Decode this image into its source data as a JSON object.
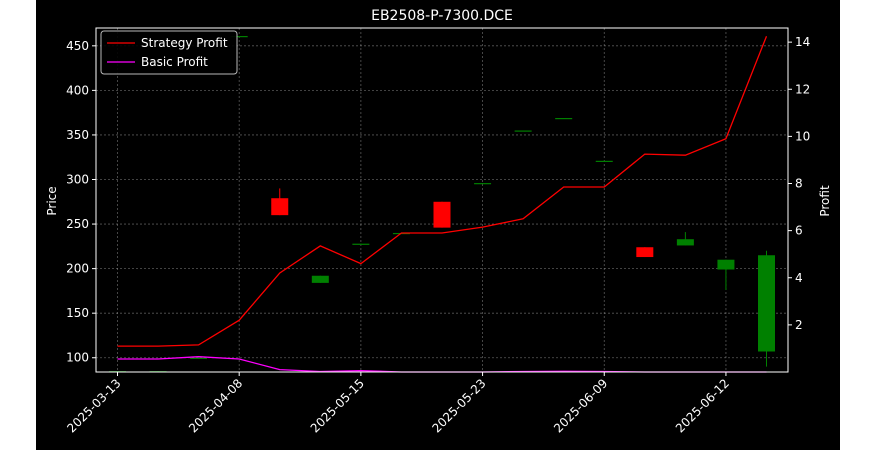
{
  "chart_data": {
    "type": "candlestick+line",
    "title": "EB2508-P-7300.DCE",
    "ylabel_left": "Price",
    "ylabel_right": "Profit",
    "ylim_left": [
      84,
      470
    ],
    "ylim_right": [
      0.0,
      14.6
    ],
    "yticks_left": [
      100,
      150,
      200,
      250,
      300,
      350,
      400,
      450
    ],
    "yticks_right": [
      2,
      4,
      6,
      8,
      10,
      12,
      14
    ],
    "x_tick_labels": [
      "2025-03-13",
      "2025-04-08",
      "2025-05-15",
      "2025-05-23",
      "2025-06-09",
      "2025-06-12"
    ],
    "x_tick_positions": [
      0,
      3,
      6,
      9,
      12,
      15
    ],
    "grid": true,
    "legend_position": "upper-left",
    "series": [
      {
        "name": "Strategy Profit",
        "color": "#ff0000",
        "axis": "right",
        "values": [
          1.1,
          1.1,
          1.15,
          2.2,
          4.2,
          5.35,
          4.6,
          5.9,
          5.9,
          6.15,
          6.5,
          7.85,
          7.85,
          9.25,
          9.2,
          9.9,
          14.25
        ]
      },
      {
        "name": "Basic Profit",
        "color": "#ff00ff",
        "axis": "right",
        "values": [
          0.55,
          0.55,
          0.65,
          0.55,
          0.1,
          0.02,
          0.06,
          0.0,
          0.0,
          0.0,
          0.02,
          0.03,
          0.02,
          0.0,
          0.0,
          0.0,
          0.0
        ]
      }
    ],
    "candles": [
      {
        "open": 85,
        "close": 84,
        "high": 85,
        "low": 84
      },
      {
        "open": 85,
        "close": 84,
        "high": 85,
        "low": 84
      },
      {
        "open": 100,
        "close": 99,
        "high": 100,
        "low": 99
      },
      {
        "open": 461,
        "close": 460,
        "high": 461,
        "low": 460
      },
      {
        "open": 260,
        "close": 279,
        "high": 290,
        "low": 260
      },
      {
        "open": 192,
        "close": 184,
        "high": 192,
        "low": 184
      },
      {
        "open": 228,
        "close": 227,
        "high": 228,
        "low": 227
      },
      {
        "open": 240,
        "close": 239,
        "high": 240,
        "low": 239
      },
      {
        "open": 246,
        "close": 275,
        "high": 275,
        "low": 246
      },
      {
        "open": 296,
        "close": 295,
        "high": 296,
        "low": 295
      },
      {
        "open": 355,
        "close": 354,
        "high": 355,
        "low": 354
      },
      {
        "open": 369,
        "close": 368,
        "high": 369,
        "low": 368
      },
      {
        "open": 321,
        "close": 320,
        "high": 321,
        "low": 320
      },
      {
        "open": 213,
        "close": 224,
        "high": 224,
        "low": 213
      },
      {
        "open": 233,
        "close": 226,
        "high": 241,
        "low": 226
      },
      {
        "open": 210,
        "close": 199,
        "high": 210,
        "low": 176
      },
      {
        "open": 215,
        "close": 107,
        "high": 220,
        "low": 90
      }
    ],
    "up_color": "#ff0000",
    "down_color": "#008000"
  }
}
